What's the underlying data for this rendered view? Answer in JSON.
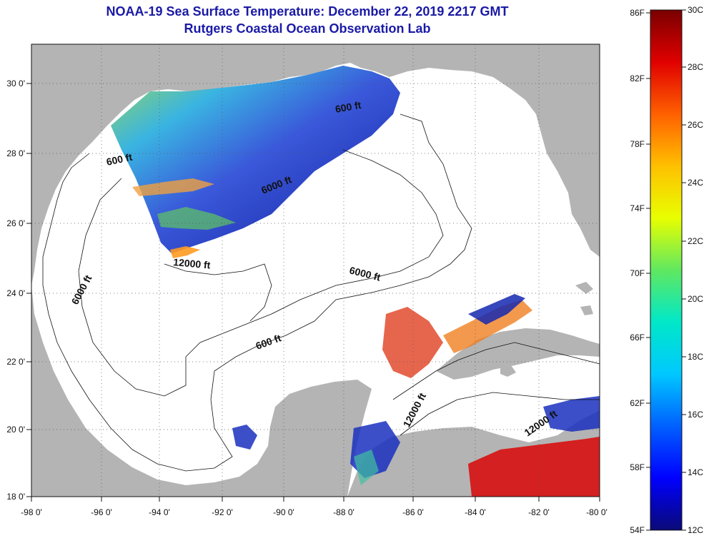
{
  "title": "NOAA-19 Sea Surface Temperature:  December 22, 2019 2217 GMT",
  "subtitle": "Rutgers Coastal Ocean Observation Lab",
  "lon_ticks": [
    "-98 0'",
    "-96 0'",
    "-94 0'",
    "-92 0'",
    "-90 0'",
    "-88 0'",
    "-86 0'",
    "-84 0'",
    "-82 0'",
    "-80 0'"
  ],
  "lat_ticks": [
    "30 0'",
    "28 0'",
    "26 0'",
    "24 0'",
    "22 0'",
    "20 0'",
    "18 0'"
  ],
  "contour_labels": [
    "600 ft",
    "600 ft",
    "600 ft",
    "6000 ft",
    "6000 ft",
    "6000 ft",
    "12000 ft",
    "12000 ft",
    "12000 ft"
  ],
  "colorbar": {
    "fahrenheit": [
      "86F",
      "82F",
      "78F",
      "74F",
      "70F",
      "66F",
      "62F",
      "58F",
      "54F"
    ],
    "celsius": [
      "30C",
      "28C",
      "26C",
      "24C",
      "22C",
      "20C",
      "18C",
      "16C",
      "14C",
      "12C"
    ]
  },
  "colors": {
    "land": "#b4b4b4",
    "ocean": "#ffffff",
    "title": "#1a1aa6"
  }
}
